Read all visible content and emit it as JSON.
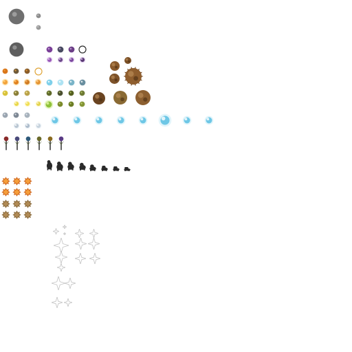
{
  "sheet": {
    "kind": "sprite-sheet",
    "background": "#ffffff",
    "palette": {
      "gray_orb": "#6f6f6f",
      "violet": "#7a3f98",
      "ember": "#d9761a",
      "ember_hot": "#f2a23a",
      "gold": "#d8c23a",
      "olive": "#5f6a2a",
      "lime": "#8fc23a",
      "ice": "#6ec7e6",
      "ice_glow": "#bfe9f7",
      "spore_brown": "#8a5a2b",
      "shadow": "#2a2a2a",
      "sparkle": "#c8c8c8"
    },
    "groups": [
      {
        "name": "gray-orb",
        "icon": "gray-orb-icon"
      },
      {
        "name": "violet-orb-row",
        "icon": "violet-orb-icon"
      },
      {
        "name": "ember-orb-row",
        "icon": "ember-orb-icon"
      },
      {
        "name": "gold-orb-row",
        "icon": "gold-orb-icon"
      },
      {
        "name": "green-orb-row",
        "icon": "green-orb-icon"
      },
      {
        "name": "ice-orb-row",
        "icon": "ice-orb-icon"
      },
      {
        "name": "spiky-spore",
        "icon": "spore-icon"
      },
      {
        "name": "flower-sprout-row",
        "icon": "sprout-icon"
      },
      {
        "name": "shadow-creature-row",
        "icon": "shadow-creature-icon"
      },
      {
        "name": "fire-burst-grid",
        "icon": "fire-burst-icon"
      },
      {
        "name": "sparkle-cluster",
        "icon": "sparkle-icon"
      }
    ]
  }
}
